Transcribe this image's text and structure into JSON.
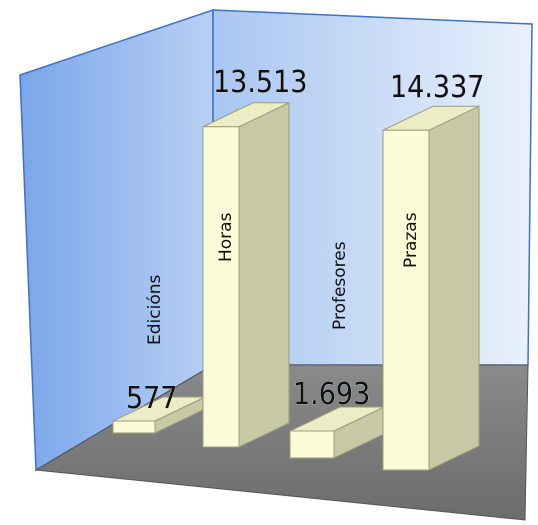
{
  "chart_data": {
    "type": "bar",
    "categories": [
      "Edicións",
      "Horas",
      "Profesores",
      "Prazas"
    ],
    "values": [
      577,
      13513,
      1693,
      14337
    ],
    "value_labels": [
      "577",
      "13.513",
      "1.693",
      "14.337"
    ],
    "title": "",
    "xlabel": "",
    "ylabel": "",
    "ylim": [
      0,
      16000
    ],
    "grid": false,
    "legend": "none",
    "style": "3d",
    "colors": {
      "bar_front": "#fbfbd7",
      "bar_side": "#c7c9a4",
      "bar_top": "#ecedc4",
      "wall_dark": "#7aa6ea",
      "wall_light": "#e4eefb",
      "floor": "#7a7a7a"
    }
  }
}
